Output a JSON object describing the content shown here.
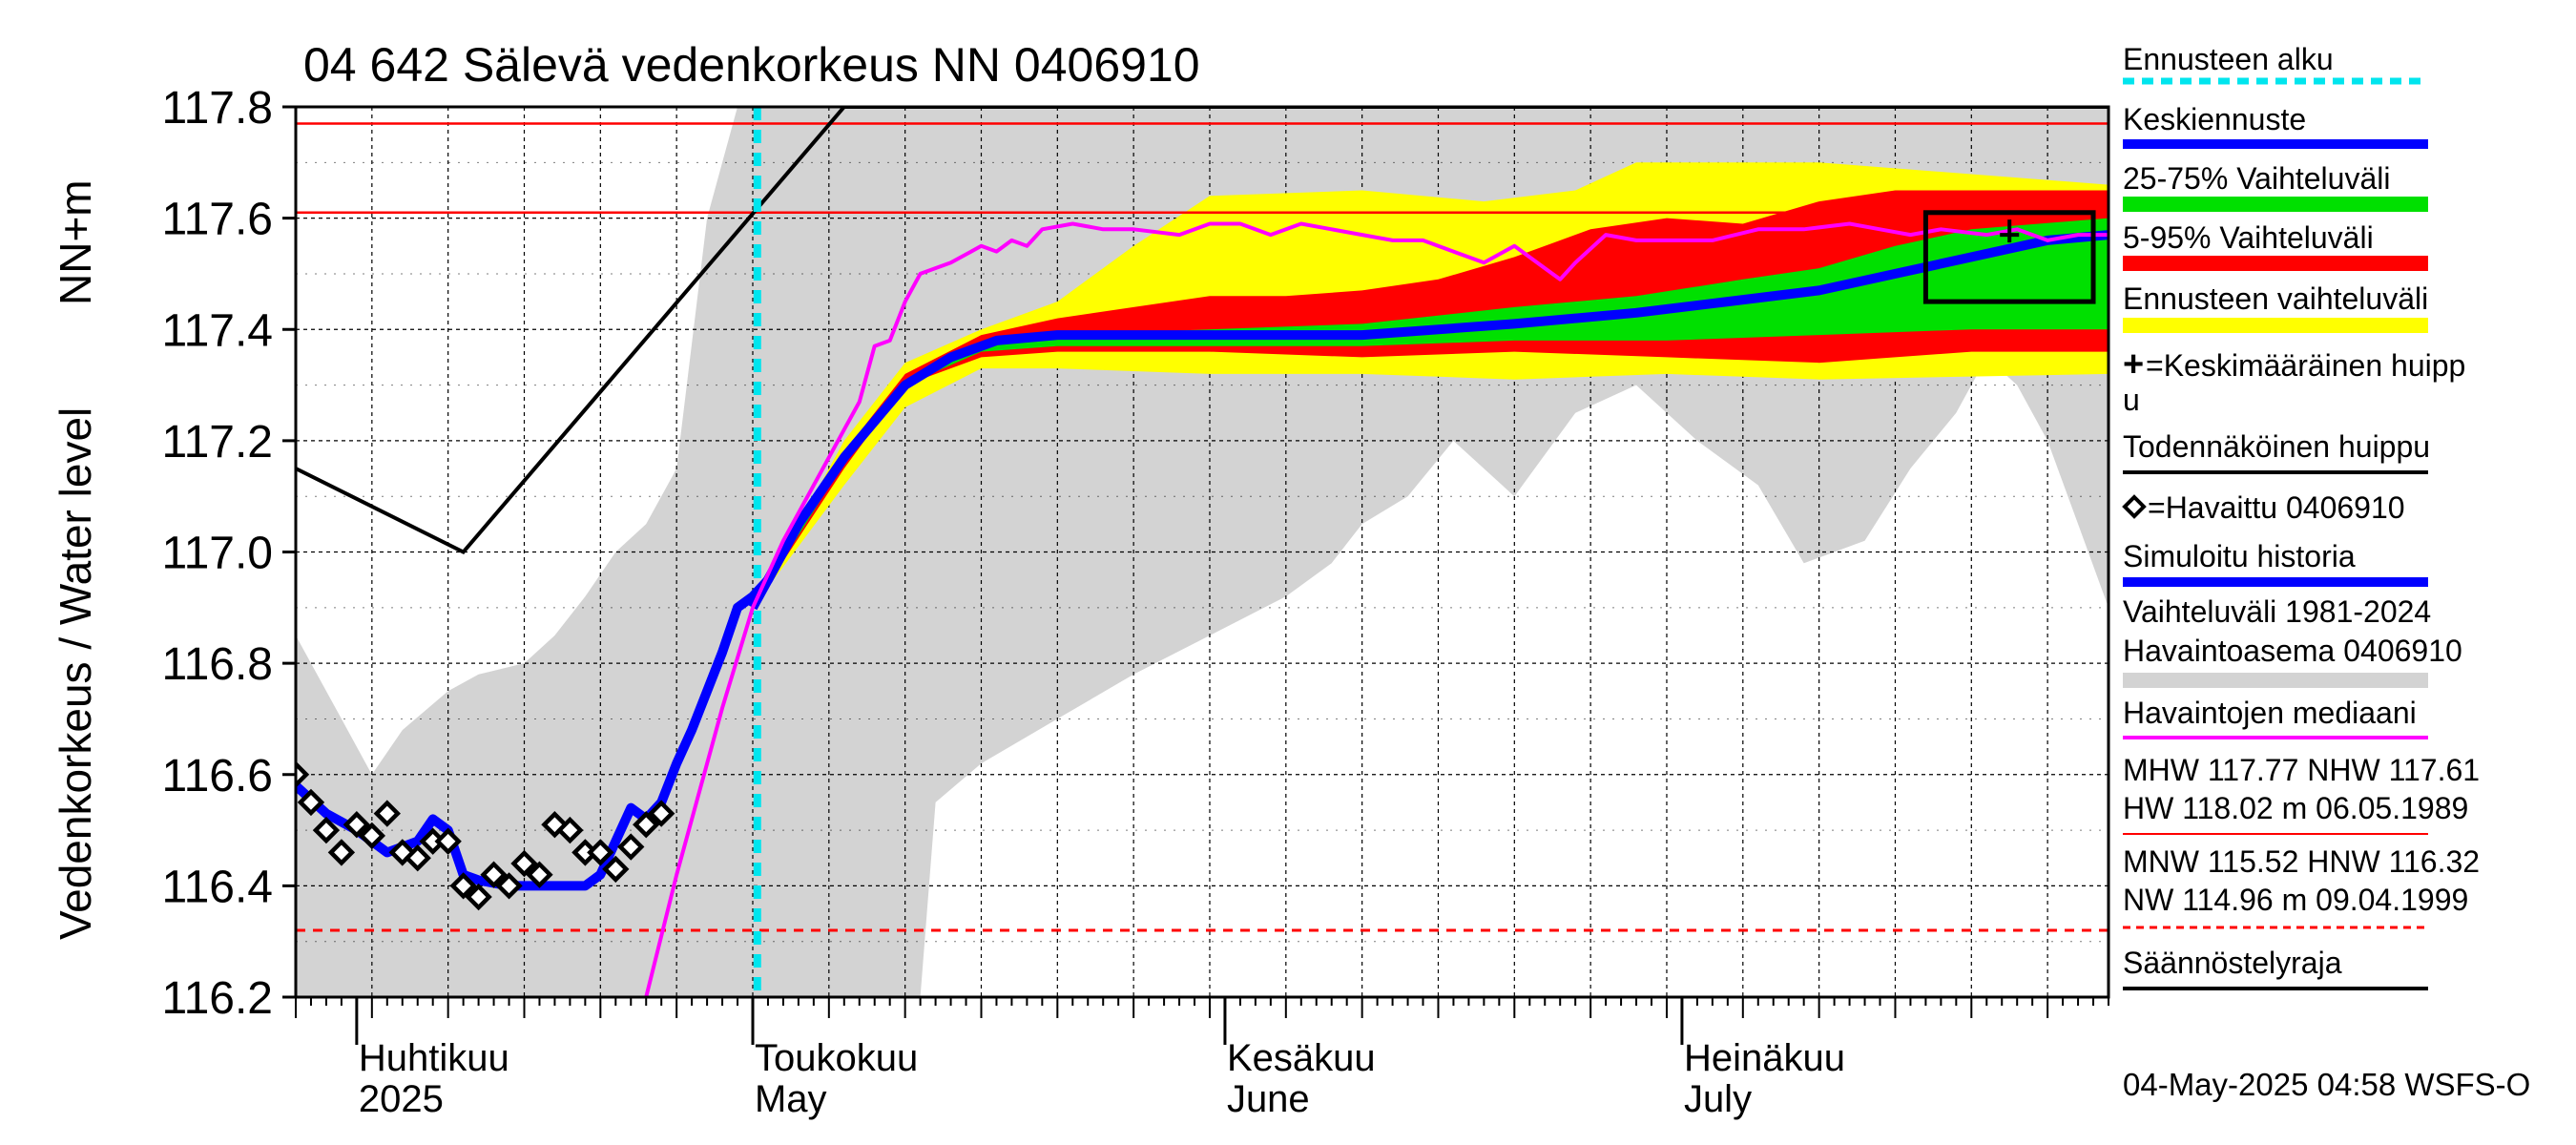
{
  "title": "04 642 Sälevä vedenkorkeus NN 0406910",
  "ylabel_left": "Vedenkorkeus / Water level",
  "ylabel_unit": "NN+m",
  "footer": "04-May-2025 04:58 WSFS-O",
  "x_months": [
    {
      "fi": "Huhtikuu",
      "en": "2025",
      "day": 4
    },
    {
      "fi": "Toukokuu",
      "en": "May",
      "day": 30
    },
    {
      "fi": "Kesäkuu",
      "en": "June",
      "day": 61
    },
    {
      "fi": "Heinäkuu",
      "en": "July",
      "day": 91
    }
  ],
  "legend": {
    "forecast_start": "Ennusteen alku",
    "mean_forecast": "Keskiennuste",
    "range_25_75": "25-75% Vaihteluväli",
    "range_5_95": "5-95% Vaihteluväli",
    "forecast_range": "Ennusteen vaihteluväli",
    "mean_peak_1": "=Keskimääräinen huipp",
    "mean_peak_2": "u",
    "probable_peak": "Todennäköinen huippu",
    "observed": "=Havaittu 0406910",
    "simulated": "Simuloitu historia",
    "hist_range_1": "Vaihteluväli 1981-2024",
    "hist_range_2": " Havaintoasema 0406910",
    "obs_median": "Havaintojen mediaani",
    "stats_high_1": "MHW 117.77 NHW 117.61",
    "stats_high_2": "HW 118.02 m 06.05.1989",
    "stats_low_1": "MNW 115.52 HNW 116.32",
    "stats_low_2": "NW 114.96 m 09.04.1999",
    "regulation_limit": "Säännöstelyraja"
  },
  "colors": {
    "hist_range": "#d3d3d3",
    "forecast_range": "#ffff00",
    "range_5_95": "#ff0000",
    "range_25_75": "#00e000",
    "mean_forecast": "#0000ff",
    "median": "#ff00ff",
    "forecast_start": "#00e5ee",
    "ref_line": "#ff0000"
  },
  "chart_data": {
    "type": "line",
    "x_unit": "days from 1 April 2025",
    "xlim": [
      0,
      119
    ],
    "ylim": [
      116.2,
      117.8
    ],
    "yticks": [
      116.2,
      116.4,
      116.6,
      116.8,
      117.0,
      117.2,
      117.4,
      117.6,
      117.8
    ],
    "forecast_start_day": 30.3,
    "ref_lines": {
      "MHW": 117.77,
      "NHW": 117.61,
      "HNW": 116.32
    },
    "regulation_limit": [
      [
        0,
        117.15
      ],
      [
        11,
        117.0
      ],
      [
        36,
        117.8
      ],
      [
        119,
        117.8
      ]
    ],
    "hist_range": {
      "upper": [
        [
          0,
          116.85
        ],
        [
          3,
          116.7
        ],
        [
          5,
          116.6
        ],
        [
          7,
          116.68
        ],
        [
          10,
          116.75
        ],
        [
          12,
          116.78
        ],
        [
          15,
          116.8
        ],
        [
          17,
          116.85
        ],
        [
          19,
          116.92
        ],
        [
          21,
          117.0
        ],
        [
          23,
          117.05
        ],
        [
          25,
          117.15
        ],
        [
          27,
          117.6
        ],
        [
          29,
          117.8
        ],
        [
          119,
          117.8
        ]
      ],
      "lower": [
        [
          0,
          116.2
        ],
        [
          41,
          116.2
        ],
        [
          42,
          116.55
        ],
        [
          45,
          116.62
        ],
        [
          50,
          116.7
        ],
        [
          55,
          116.78
        ],
        [
          60,
          116.85
        ],
        [
          65,
          116.92
        ],
        [
          68,
          116.98
        ],
        [
          70,
          117.05
        ],
        [
          73,
          117.1
        ],
        [
          76,
          117.2
        ],
        [
          80,
          117.1
        ],
        [
          84,
          117.25
        ],
        [
          88,
          117.3
        ],
        [
          92,
          117.2
        ],
        [
          96,
          117.12
        ],
        [
          99,
          116.98
        ],
        [
          103,
          117.02
        ],
        [
          106,
          117.15
        ],
        [
          109,
          117.25
        ],
        [
          111,
          117.35
        ],
        [
          113,
          117.3
        ],
        [
          115,
          117.2
        ],
        [
          117,
          117.05
        ],
        [
          119,
          116.9
        ]
      ]
    },
    "forecast_range": {
      "upper": [
        [
          30,
          116.9
        ],
        [
          36,
          117.2
        ],
        [
          40,
          117.34
        ],
        [
          45,
          117.4
        ],
        [
          50,
          117.45
        ],
        [
          55,
          117.55
        ],
        [
          60,
          117.64
        ],
        [
          70,
          117.65
        ],
        [
          78,
          117.63
        ],
        [
          84,
          117.65
        ],
        [
          88,
          117.7
        ],
        [
          100,
          117.7
        ],
        [
          119,
          117.66
        ]
      ],
      "lower": [
        [
          30,
          116.9
        ],
        [
          36,
          117.12
        ],
        [
          40,
          117.26
        ],
        [
          45,
          117.33
        ],
        [
          50,
          117.33
        ],
        [
          60,
          117.32
        ],
        [
          70,
          117.32
        ],
        [
          80,
          117.31
        ],
        [
          90,
          117.32
        ],
        [
          100,
          117.31
        ],
        [
          119,
          117.32
        ]
      ]
    },
    "range_5_95": {
      "upper": [
        [
          30,
          116.9
        ],
        [
          36,
          117.18
        ],
        [
          40,
          117.32
        ],
        [
          45,
          117.39
        ],
        [
          50,
          117.42
        ],
        [
          55,
          117.44
        ],
        [
          60,
          117.46
        ],
        [
          65,
          117.46
        ],
        [
          70,
          117.47
        ],
        [
          75,
          117.49
        ],
        [
          80,
          117.53
        ],
        [
          85,
          117.58
        ],
        [
          90,
          117.6
        ],
        [
          95,
          117.59
        ],
        [
          100,
          117.63
        ],
        [
          105,
          117.65
        ],
        [
          119,
          117.65
        ]
      ],
      "lower": [
        [
          30,
          116.9
        ],
        [
          36,
          117.15
        ],
        [
          40,
          117.3
        ],
        [
          45,
          117.35
        ],
        [
          50,
          117.36
        ],
        [
          60,
          117.36
        ],
        [
          70,
          117.35
        ],
        [
          80,
          117.36
        ],
        [
          90,
          117.35
        ],
        [
          100,
          117.34
        ],
        [
          105,
          117.35
        ],
        [
          110,
          117.36
        ],
        [
          119,
          117.36
        ]
      ]
    },
    "range_25_75": {
      "upper": [
        [
          30,
          116.9
        ],
        [
          36,
          117.17
        ],
        [
          40,
          117.31
        ],
        [
          45,
          117.37
        ],
        [
          50,
          117.39
        ],
        [
          60,
          117.4
        ],
        [
          70,
          117.41
        ],
        [
          80,
          117.44
        ],
        [
          88,
          117.46
        ],
        [
          95,
          117.49
        ],
        [
          100,
          117.51
        ],
        [
          105,
          117.55
        ],
        [
          110,
          117.58
        ],
        [
          119,
          117.6
        ]
      ],
      "lower": [
        [
          30,
          116.9
        ],
        [
          36,
          117.16
        ],
        [
          40,
          117.3
        ],
        [
          45,
          117.36
        ],
        [
          50,
          117.37
        ],
        [
          60,
          117.37
        ],
        [
          70,
          117.37
        ],
        [
          80,
          117.38
        ],
        [
          90,
          117.38
        ],
        [
          100,
          117.39
        ],
        [
          110,
          117.4
        ],
        [
          119,
          117.4
        ]
      ]
    },
    "mean_forecast": [
      [
        30,
        116.9
      ],
      [
        33,
        117.05
      ],
      [
        36,
        117.17
      ],
      [
        40,
        117.3
      ],
      [
        43,
        117.35
      ],
      [
        46,
        117.38
      ],
      [
        50,
        117.39
      ],
      [
        60,
        117.39
      ],
      [
        70,
        117.39
      ],
      [
        80,
        117.41
      ],
      [
        88,
        117.43
      ],
      [
        94,
        117.45
      ],
      [
        100,
        117.47
      ],
      [
        105,
        117.5
      ],
      [
        110,
        117.53
      ],
      [
        115,
        117.56
      ],
      [
        119,
        117.57
      ]
    ],
    "simulated_history": [
      [
        0,
        116.58
      ],
      [
        2,
        116.53
      ],
      [
        4,
        116.5
      ],
      [
        6,
        116.46
      ],
      [
        8,
        116.48
      ],
      [
        9,
        116.52
      ],
      [
        10,
        116.5
      ],
      [
        11,
        116.42
      ],
      [
        12,
        116.41
      ],
      [
        14,
        116.4
      ],
      [
        17,
        116.4
      ],
      [
        19,
        116.4
      ],
      [
        20,
        116.42
      ],
      [
        21,
        116.48
      ],
      [
        22,
        116.54
      ],
      [
        23,
        116.52
      ],
      [
        24,
        116.55
      ],
      [
        25,
        116.62
      ],
      [
        26,
        116.68
      ],
      [
        27,
        116.75
      ],
      [
        28,
        116.82
      ],
      [
        29,
        116.9
      ],
      [
        30,
        116.92
      ],
      [
        31,
        116.95
      ],
      [
        32,
        117.0
      ],
      [
        33,
        117.05
      ]
    ],
    "observed": [
      [
        0,
        116.6
      ],
      [
        1,
        116.55
      ],
      [
        2,
        116.5
      ],
      [
        3,
        116.46
      ],
      [
        4,
        116.51
      ],
      [
        5,
        116.49
      ],
      [
        6,
        116.53
      ],
      [
        7,
        116.46
      ],
      [
        8,
        116.45
      ],
      [
        9,
        116.48
      ],
      [
        10,
        116.48
      ],
      [
        11,
        116.4
      ],
      [
        12,
        116.38
      ],
      [
        13,
        116.42
      ],
      [
        14,
        116.4
      ],
      [
        15,
        116.44
      ],
      [
        16,
        116.42
      ],
      [
        17,
        116.51
      ],
      [
        18,
        116.5
      ],
      [
        19,
        116.46
      ],
      [
        20,
        116.46
      ],
      [
        21,
        116.43
      ],
      [
        22,
        116.47
      ],
      [
        23,
        116.51
      ],
      [
        24,
        116.53
      ]
    ],
    "median": [
      [
        23,
        116.2
      ],
      [
        25,
        116.42
      ],
      [
        28,
        116.72
      ],
      [
        30,
        116.9
      ],
      [
        32,
        117.02
      ],
      [
        34,
        117.12
      ],
      [
        36,
        117.22
      ],
      [
        37,
        117.27
      ],
      [
        38,
        117.37
      ],
      [
        39,
        117.38
      ],
      [
        40,
        117.45
      ],
      [
        41,
        117.5
      ],
      [
        43,
        117.52
      ],
      [
        45,
        117.55
      ],
      [
        46,
        117.54
      ],
      [
        47,
        117.56
      ],
      [
        48,
        117.55
      ],
      [
        49,
        117.58
      ],
      [
        51,
        117.59
      ],
      [
        53,
        117.58
      ],
      [
        55,
        117.58
      ],
      [
        58,
        117.57
      ],
      [
        60,
        117.59
      ],
      [
        62,
        117.59
      ],
      [
        64,
        117.57
      ],
      [
        66,
        117.59
      ],
      [
        68,
        117.58
      ],
      [
        70,
        117.57
      ],
      [
        72,
        117.56
      ],
      [
        74,
        117.56
      ],
      [
        76,
        117.54
      ],
      [
        78,
        117.52
      ],
      [
        80,
        117.55
      ],
      [
        82,
        117.51
      ],
      [
        83,
        117.49
      ],
      [
        84,
        117.52
      ],
      [
        86,
        117.57
      ],
      [
        88,
        117.56
      ],
      [
        90,
        117.56
      ],
      [
        93,
        117.56
      ],
      [
        96,
        117.58
      ],
      [
        99,
        117.58
      ],
      [
        102,
        117.59
      ],
      [
        104,
        117.58
      ],
      [
        106,
        117.57
      ],
      [
        108,
        117.58
      ],
      [
        111,
        117.57
      ],
      [
        113,
        117.58
      ],
      [
        115,
        117.56
      ],
      [
        117,
        117.57
      ],
      [
        119,
        117.57
      ]
    ],
    "probable_peak_box": {
      "x": [
        107,
        118
      ],
      "y": [
        117.45,
        117.61
      ]
    },
    "mean_peak": {
      "x": 112.5,
      "y": 117.57
    }
  }
}
